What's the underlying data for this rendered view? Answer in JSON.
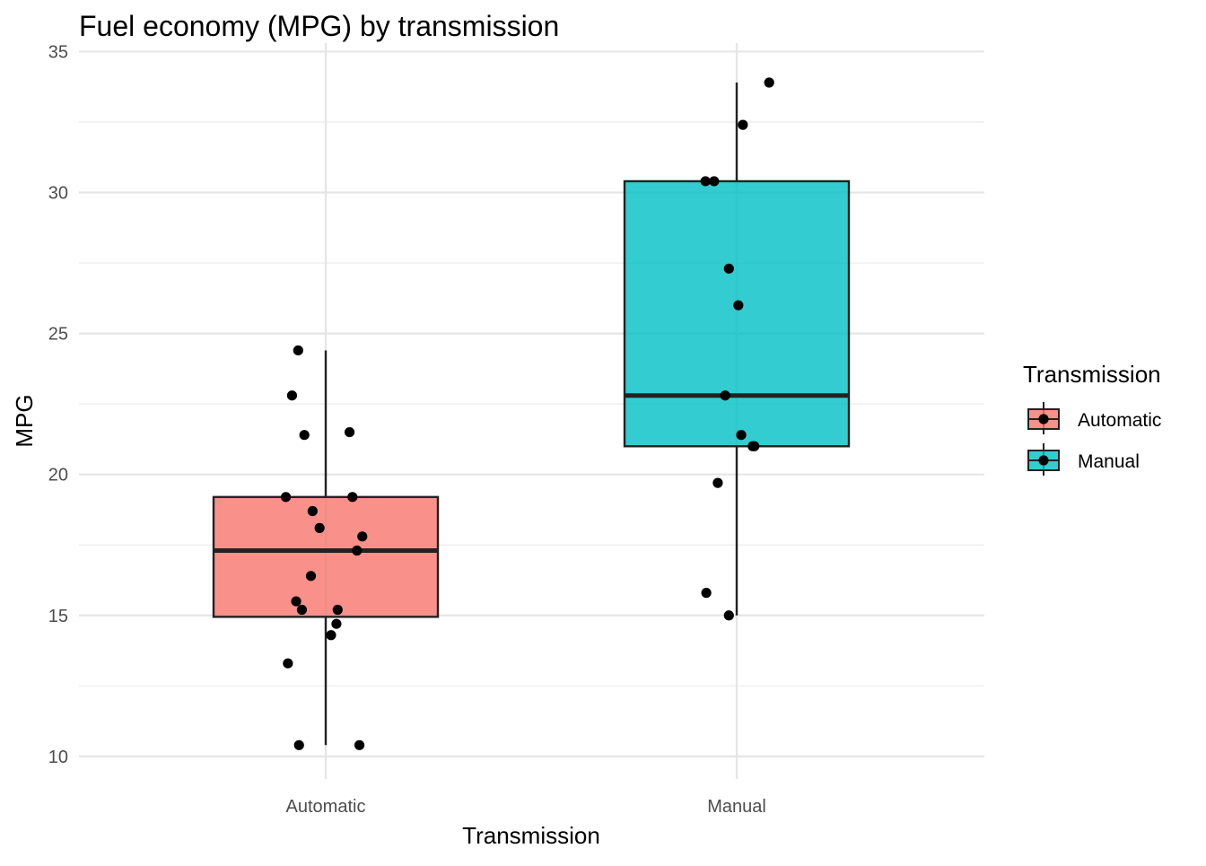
{
  "chart_data": {
    "type": "box",
    "title": "Fuel economy (MPG) by transmission",
    "xlabel": "Transmission",
    "ylabel": "MPG",
    "ylim": [
      9.2,
      35.3
    ],
    "yticks": [
      10,
      15,
      20,
      25,
      30,
      35
    ],
    "grid": true,
    "legend": {
      "title": "Transmission",
      "position": "right"
    },
    "categories": [
      "Automatic",
      "Manual"
    ],
    "series": [
      {
        "name": "Automatic",
        "color": "#F8766D",
        "box": {
          "whisker_low": 10.4,
          "q1": 14.95,
          "median": 17.3,
          "q3": 19.2,
          "whisker_high": 24.4
        },
        "points": [
          {
            "jitter": -0.067,
            "y": 24.4
          },
          {
            "jitter": -0.082,
            "y": 22.8
          },
          {
            "jitter": 0.058,
            "y": 21.5
          },
          {
            "jitter": -0.052,
            "y": 21.4
          },
          {
            "jitter": 0.065,
            "y": 19.2
          },
          {
            "jitter": -0.097,
            "y": 19.2
          },
          {
            "jitter": -0.032,
            "y": 18.7
          },
          {
            "jitter": -0.015,
            "y": 18.1
          },
          {
            "jitter": 0.089,
            "y": 17.8
          },
          {
            "jitter": 0.076,
            "y": 17.3
          },
          {
            "jitter": -0.036,
            "y": 16.4
          },
          {
            "jitter": -0.072,
            "y": 15.5
          },
          {
            "jitter": -0.058,
            "y": 15.2
          },
          {
            "jitter": 0.029,
            "y": 15.2
          },
          {
            "jitter": 0.026,
            "y": 14.7
          },
          {
            "jitter": 0.013,
            "y": 14.3
          },
          {
            "jitter": -0.092,
            "y": 13.3
          },
          {
            "jitter": -0.065,
            "y": 10.4
          },
          {
            "jitter": 0.082,
            "y": 10.4
          }
        ]
      },
      {
        "name": "Manual",
        "color": "#00BFC4",
        "box": {
          "whisker_low": 15.0,
          "q1": 21.0,
          "median": 22.8,
          "q3": 30.4,
          "whisker_high": 33.9
        },
        "points": [
          {
            "jitter": 0.079,
            "y": 33.9
          },
          {
            "jitter": 0.015,
            "y": 32.4
          },
          {
            "jitter": -0.076,
            "y": 30.4
          },
          {
            "jitter": -0.055,
            "y": 30.4
          },
          {
            "jitter": -0.019,
            "y": 27.3
          },
          {
            "jitter": 0.004,
            "y": 26.0
          },
          {
            "jitter": -0.028,
            "y": 22.8
          },
          {
            "jitter": 0.011,
            "y": 21.4
          },
          {
            "jitter": 0.039,
            "y": 21.0
          },
          {
            "jitter": 0.043,
            "y": 21.0
          },
          {
            "jitter": -0.046,
            "y": 19.7
          },
          {
            "jitter": -0.074,
            "y": 15.8
          },
          {
            "jitter": -0.019,
            "y": 15.0
          }
        ]
      }
    ]
  }
}
